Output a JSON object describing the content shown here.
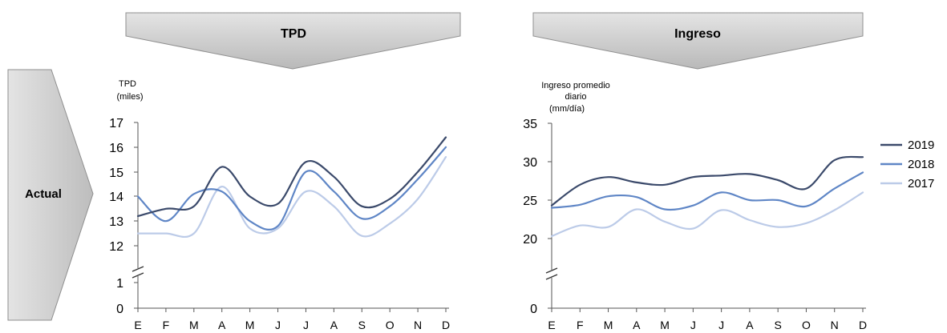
{
  "headers": {
    "left": "TPD",
    "right": "Ingreso",
    "side": "Actual"
  },
  "chart_data": [
    {
      "type": "line",
      "ylabel_lines": [
        "TPD",
        "(miles)"
      ],
      "categories": [
        "E",
        "F",
        "M",
        "A",
        "M",
        "J",
        "J",
        "A",
        "S",
        "O",
        "N",
        "D"
      ],
      "y_ticks": [
        "17",
        "16",
        "15",
        "14",
        "13",
        "12",
        "1",
        "0"
      ],
      "axis_break": true,
      "ylim": [
        12,
        17
      ],
      "grid": false,
      "series": [
        {
          "name": "2019",
          "color": "#3b4a6b",
          "values": [
            13.2,
            13.5,
            13.6,
            15.2,
            14.0,
            13.7,
            15.4,
            14.8,
            13.6,
            13.9,
            15.0,
            16.4
          ]
        },
        {
          "name": "2018",
          "color": "#5f86c6",
          "values": [
            14.0,
            13.0,
            14.1,
            14.2,
            13.0,
            12.8,
            15.0,
            14.2,
            13.1,
            13.6,
            14.7,
            16.0
          ]
        },
        {
          "name": "2017",
          "color": "#bccbe8",
          "values": [
            12.5,
            12.5,
            12.5,
            14.4,
            12.7,
            12.7,
            14.2,
            13.6,
            12.4,
            12.9,
            13.9,
            15.6
          ]
        }
      ]
    },
    {
      "type": "line",
      "ylabel_lines": [
        "Ingreso promedio",
        "diario",
        "(mm/día)"
      ],
      "categories": [
        "E",
        "F",
        "M",
        "A",
        "M",
        "J",
        "J",
        "A",
        "S",
        "O",
        "N",
        "D"
      ],
      "y_ticks": [
        "35",
        "30",
        "25",
        "20",
        "0"
      ],
      "axis_break": true,
      "ylim": [
        20,
        35
      ],
      "grid": false,
      "legend_position": "right",
      "series": [
        {
          "name": "2019",
          "color": "#3b4a6b",
          "values": [
            24.3,
            27.0,
            28.0,
            27.3,
            27.0,
            28.0,
            28.2,
            28.4,
            27.6,
            26.5,
            30.2,
            30.6
          ]
        },
        {
          "name": "2018",
          "color": "#5f86c6",
          "values": [
            24.0,
            24.4,
            25.5,
            25.4,
            23.8,
            24.3,
            26.0,
            25.0,
            25.0,
            24.2,
            26.5,
            28.6
          ]
        },
        {
          "name": "2017",
          "color": "#bccbe8",
          "values": [
            20.3,
            21.7,
            21.5,
            23.8,
            22.2,
            21.3,
            23.7,
            22.4,
            21.5,
            22.0,
            23.7,
            26.0
          ]
        }
      ]
    }
  ]
}
